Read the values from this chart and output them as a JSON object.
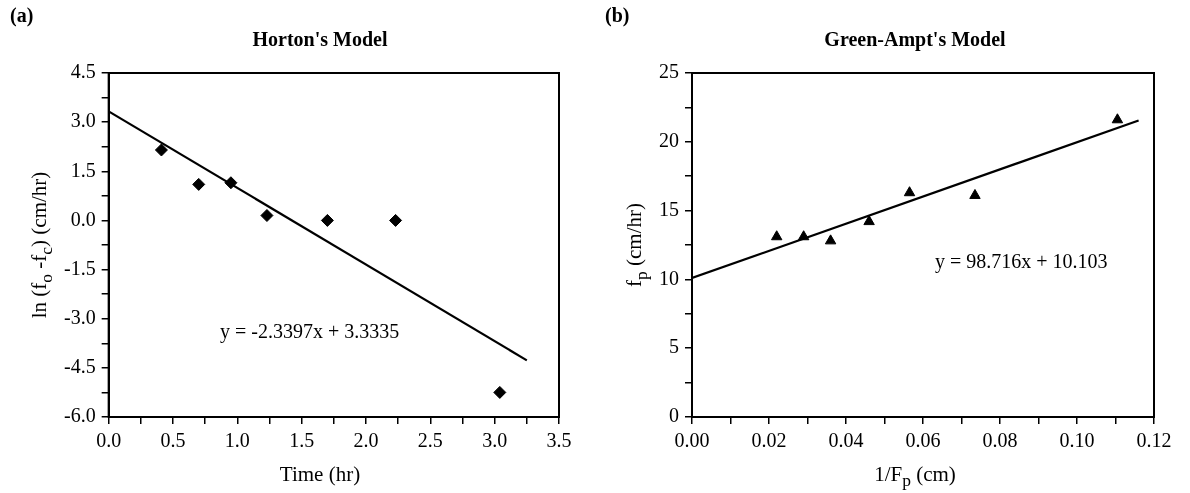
{
  "chart_data": [
    {
      "type": "scatter",
      "title": "Horton's Model",
      "xlabel": "Time (hr)",
      "ylabel": "ln (f$_{o}$ -f$_{c}$) (cm/hr)",
      "annotations": [
        "(a)",
        "y = -2.3397x + 3.3335"
      ],
      "x": [
        0.41,
        0.7,
        0.95,
        1.23,
        1.7,
        2.23,
        3.04
      ],
      "series": [
        {
          "marker": "diamond",
          "color": "#000000",
          "values": [
            2.15,
            1.1,
            1.15,
            0.15,
            0.0,
            0.0,
            -5.25
          ]
        },
        {
          "type": "line",
          "marker": "none",
          "color": "#000000",
          "x": [
            0,
            3.25
          ],
          "values": [
            3.33,
            -4.27
          ]
        }
      ],
      "xlim": [
        0,
        3.5
      ],
      "ylim": [
        -6,
        4.5
      ],
      "xticks": [
        {
          "value": 0,
          "label": "0.0"
        },
        {
          "value": 0.25,
          "label": null
        },
        {
          "value": 0.5,
          "label": "0.5"
        },
        {
          "value": 0.75,
          "label": null
        },
        {
          "value": 1,
          "label": "1.0"
        },
        {
          "value": 1.25,
          "label": null
        },
        1.5,
        {
          "value": 1.75,
          "label": null
        },
        {
          "value": 2,
          "label": "2.0"
        },
        {
          "value": 2.25,
          "label": null
        },
        2.5,
        {
          "value": 2.75,
          "label": null
        },
        {
          "value": 3,
          "label": "3.0"
        },
        {
          "value": 3.25,
          "label": null
        },
        3.5
      ],
      "yticks": [
        {
          "value": -6,
          "label": "-6.0"
        },
        {
          "value": -5.25,
          "label": null
        },
        -4.5,
        {
          "value": -3.75,
          "label": null
        },
        {
          "value": -3,
          "label": "-3.0"
        },
        {
          "value": -2.25,
          "label": null
        },
        -1.5,
        {
          "value": -0.75,
          "label": null
        },
        {
          "value": 0,
          "label": "0.0"
        },
        {
          "value": 0.75,
          "label": null
        },
        1.5,
        {
          "value": 2.25,
          "label": null
        },
        {
          "value": 3,
          "label": "3.0"
        },
        {
          "value": 3.75,
          "label": null
        },
        4.5
      ],
      "grid": false,
      "legend": false
    },
    {
      "type": "scatter",
      "title": "Green-Ampt's Model",
      "xlabel": "1/F$_{p}$ (cm)",
      "ylabel": "f$_{p}$ (cm/hr)",
      "annotations": [
        "(b)",
        "y = 98.716x + 10.103"
      ],
      "x": [
        0.022,
        0.029,
        0.036,
        0.046,
        0.0565,
        0.0735,
        0.1105
      ],
      "series": [
        {
          "marker": "triangle",
          "color": "#000000",
          "values": [
            13.1,
            13.1,
            12.8,
            14.2,
            16.3,
            16.1,
            21.6
          ]
        },
        {
          "type": "line",
          "marker": "none",
          "color": "#000000",
          "x": [
            0,
            0.116
          ],
          "values": [
            10.1,
            21.55
          ]
        }
      ],
      "xlim": [
        0,
        0.12
      ],
      "ylim": [
        0,
        25
      ],
      "xticks": [
        {
          "value": 0,
          "label": "0.00"
        },
        {
          "value": 0.01,
          "label": null
        },
        {
          "value": 0.02,
          "label": "0.02"
        },
        {
          "value": 0.03,
          "label": null
        },
        0.04,
        {
          "value": 0.05,
          "label": null
        },
        0.06,
        {
          "value": 0.07,
          "label": null
        },
        0.08,
        {
          "value": 0.09,
          "label": null
        },
        {
          "value": 0.1,
          "label": "0.10"
        },
        {
          "value": 0.11,
          "label": null
        },
        0.12
      ],
      "yticks": [
        0,
        {
          "value": 2.5,
          "label": null
        },
        5,
        {
          "value": 7.5,
          "label": null
        },
        10,
        {
          "value": 12.5,
          "label": null
        },
        15,
        {
          "value": 17.5,
          "label": null
        },
        20,
        {
          "value": 22.5,
          "label": null
        },
        25
      ],
      "grid": false,
      "legend": false
    }
  ]
}
